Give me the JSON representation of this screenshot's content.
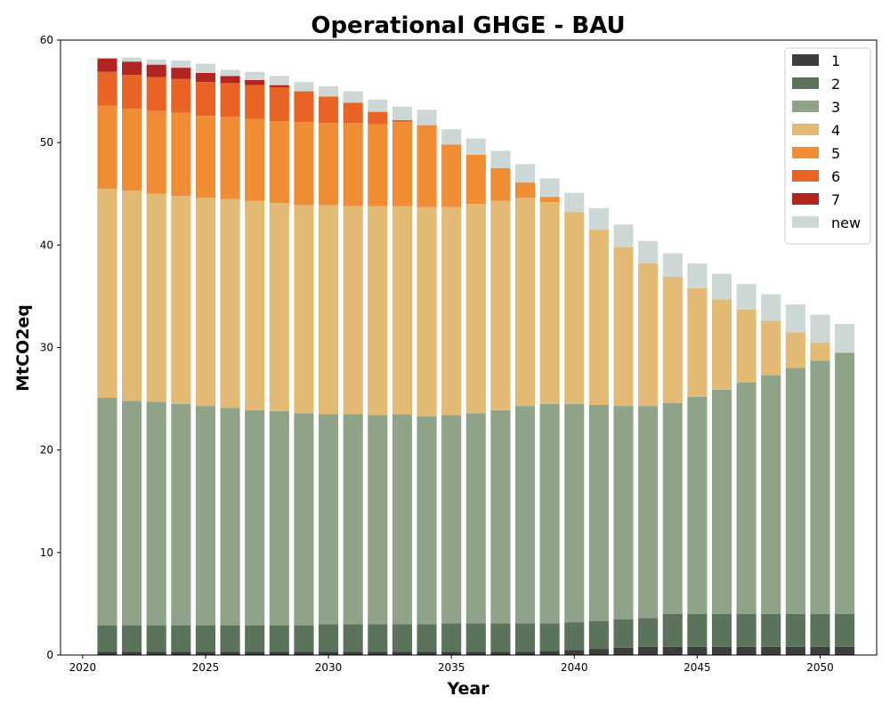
{
  "chart_data": {
    "type": "bar",
    "stacked": true,
    "title": "Operational GHGE - BAU",
    "xlabel": "Year",
    "ylabel": "MtCO2eq",
    "xlim": [
      2019.1,
      2052.3
    ],
    "ylim": [
      0,
      60
    ],
    "xticks": [
      "2020",
      "2025",
      "2030",
      "2035",
      "2040",
      "2045",
      "2050"
    ],
    "yticks": [
      "0",
      "10",
      "20",
      "30",
      "40",
      "50",
      "60"
    ],
    "grid": false,
    "legend_position": "top-right",
    "categories": [
      "2021",
      "2022",
      "2023",
      "2024",
      "2025",
      "2026",
      "2027",
      "2028",
      "2029",
      "2030",
      "2031",
      "2032",
      "2033",
      "2034",
      "2035",
      "2036",
      "2037",
      "2038",
      "2039",
      "2040",
      "2041",
      "2042",
      "2043",
      "2044",
      "2045",
      "2046",
      "2047",
      "2048",
      "2049",
      "2050",
      "2051"
    ],
    "series": [
      {
        "name": "1",
        "color": "#3d3d3d",
        "values": [
          0.3,
          0.3,
          0.3,
          0.3,
          0.3,
          0.3,
          0.3,
          0.3,
          0.3,
          0.3,
          0.3,
          0.3,
          0.3,
          0.3,
          0.3,
          0.3,
          0.3,
          0.3,
          0.4,
          0.5,
          0.6,
          0.7,
          0.8,
          0.8,
          0.8,
          0.8,
          0.8,
          0.8,
          0.8,
          0.8,
          0.8
        ]
      },
      {
        "name": "2",
        "color": "#5a735a",
        "values": [
          2.6,
          2.6,
          2.6,
          2.6,
          2.6,
          2.6,
          2.6,
          2.6,
          2.6,
          2.7,
          2.7,
          2.7,
          2.7,
          2.7,
          2.8,
          2.8,
          2.8,
          2.8,
          2.7,
          2.7,
          2.7,
          2.8,
          2.8,
          3.2,
          3.2,
          3.2,
          3.2,
          3.2,
          3.2,
          3.2,
          3.2
        ]
      },
      {
        "name": "3",
        "color": "#8ea387",
        "values": [
          22.2,
          21.9,
          21.8,
          21.6,
          21.4,
          21.2,
          21.0,
          20.9,
          20.7,
          20.5,
          20.5,
          20.4,
          20.5,
          20.3,
          20.3,
          20.5,
          20.8,
          21.2,
          21.4,
          21.3,
          21.1,
          20.8,
          20.7,
          20.6,
          21.2,
          21.9,
          22.6,
          23.3,
          24.0,
          24.7,
          25.5
        ]
      },
      {
        "name": "4",
        "color": "#e2ba74",
        "values": [
          20.4,
          20.5,
          20.3,
          20.3,
          20.3,
          20.4,
          20.4,
          20.3,
          20.3,
          20.4,
          20.3,
          20.4,
          20.3,
          20.4,
          20.3,
          20.4,
          20.4,
          20.3,
          19.7,
          18.7,
          17.1,
          15.5,
          13.9,
          12.3,
          10.6,
          8.8,
          7.1,
          5.3,
          3.5,
          1.8,
          0.0
        ]
      },
      {
        "name": "5",
        "color": "#ef8c34",
        "values": [
          8.1,
          8.0,
          8.1,
          8.1,
          8.0,
          8.0,
          8.0,
          8.0,
          8.1,
          8.0,
          8.1,
          8.0,
          8.2,
          8.0,
          6.1,
          4.8,
          3.2,
          1.5,
          0.5,
          0,
          0,
          0,
          0,
          0,
          0,
          0,
          0,
          0,
          0,
          0,
          0
        ]
      },
      {
        "name": "6",
        "color": "#e96324",
        "values": [
          3.3,
          3.3,
          3.3,
          3.3,
          3.3,
          3.3,
          3.3,
          3.3,
          3.0,
          2.6,
          2.0,
          1.2,
          0.2,
          0,
          0,
          0,
          0,
          0,
          0,
          0,
          0,
          0,
          0,
          0,
          0,
          0,
          0,
          0,
          0,
          0,
          0
        ]
      },
      {
        "name": "7",
        "color": "#b1241f",
        "values": [
          1.3,
          1.3,
          1.2,
          1.1,
          0.9,
          0.7,
          0.5,
          0.2,
          0,
          0,
          0,
          0,
          0,
          0,
          0,
          0,
          0,
          0,
          0,
          0,
          0,
          0,
          0,
          0,
          0,
          0,
          0,
          0,
          0,
          0,
          0
        ]
      },
      {
        "name": "new",
        "color": "#cdd8d6",
        "values": [
          0.1,
          0.4,
          0.5,
          0.7,
          0.9,
          0.6,
          0.8,
          0.9,
          0.9,
          1.0,
          1.1,
          1.2,
          1.3,
          1.5,
          1.5,
          1.6,
          1.7,
          1.8,
          1.8,
          1.9,
          2.1,
          2.2,
          2.2,
          2.3,
          2.4,
          2.5,
          2.5,
          2.6,
          2.7,
          2.7,
          2.8
        ]
      }
    ]
  }
}
